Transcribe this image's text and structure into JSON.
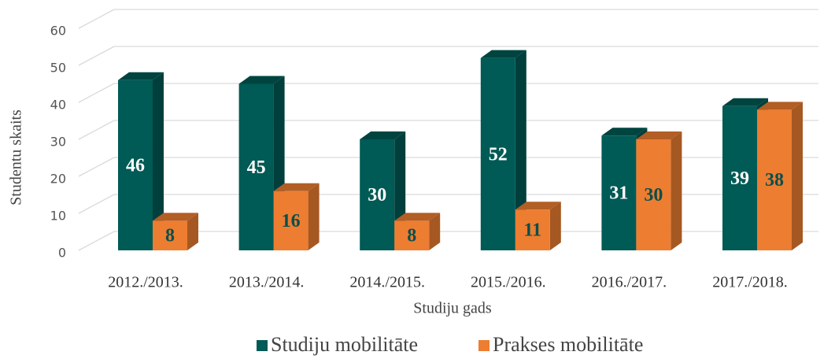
{
  "chart_data": {
    "type": "bar3d",
    "categories": [
      "2012./2013.",
      "2013./2014.",
      "2014./2015.",
      "2015./2016.",
      "2016./2017.",
      "2017./2018."
    ],
    "series": [
      {
        "name": "Studiju mobilitāte",
        "color": "#005a55",
        "values": [
          46,
          45,
          30,
          52,
          31,
          39
        ]
      },
      {
        "name": "Prakses mobilitāte",
        "color": "#ed7d31",
        "values": [
          8,
          16,
          8,
          11,
          30,
          38
        ]
      }
    ],
    "xlabel": "Studiju gads",
    "ylabel": "Studentu skaits",
    "ylim": [
      0,
      60
    ],
    "yticks": [
      0,
      10,
      20,
      30,
      40,
      50,
      60
    ],
    "grid": true,
    "legend": "bottom"
  }
}
